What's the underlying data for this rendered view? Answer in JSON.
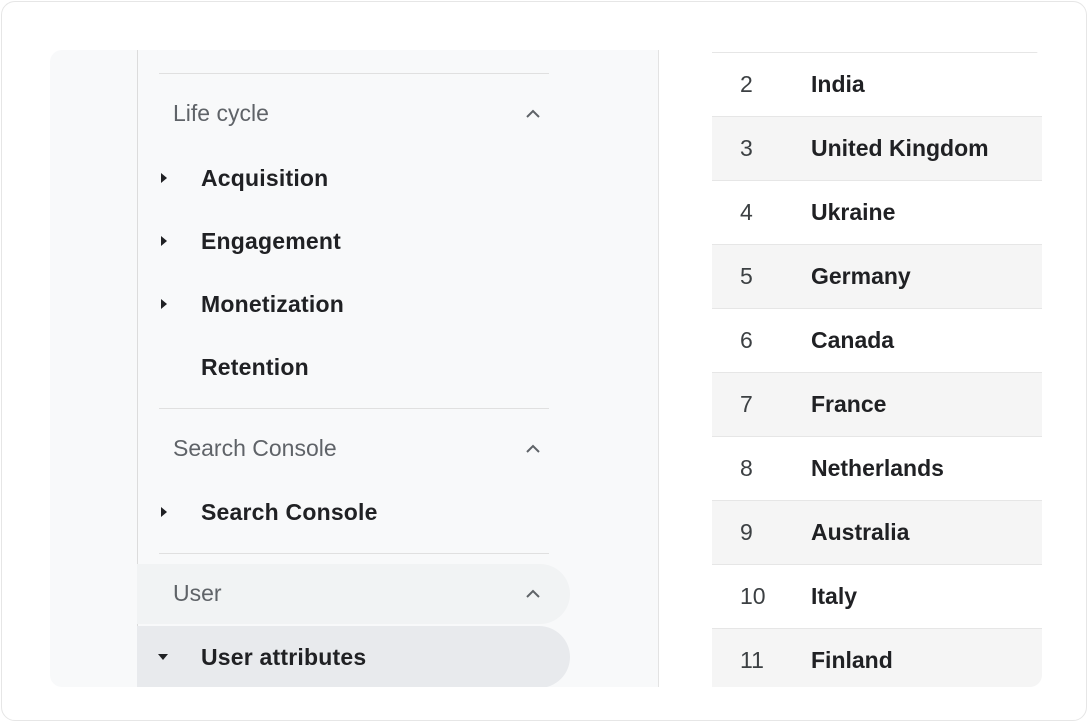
{
  "sidebar": {
    "sections": [
      {
        "title": "Life cycle",
        "items": [
          {
            "label": "Acquisition",
            "icon": "triangle-right-icon"
          },
          {
            "label": "Engagement",
            "icon": "triangle-right-icon"
          },
          {
            "label": "Monetization",
            "icon": "triangle-right-icon"
          },
          {
            "label": "Retention"
          }
        ]
      },
      {
        "title": "Search Console",
        "items": [
          {
            "label": "Search Console",
            "icon": "triangle-right-icon"
          }
        ]
      },
      {
        "title": "User",
        "items": [
          {
            "label": "User attributes",
            "icon": "triangle-down-icon",
            "selected": true
          }
        ]
      }
    ]
  },
  "table": {
    "rows": [
      {
        "rank": "2",
        "country": "India"
      },
      {
        "rank": "3",
        "country": "United Kingdom"
      },
      {
        "rank": "4",
        "country": "Ukraine"
      },
      {
        "rank": "5",
        "country": "Germany"
      },
      {
        "rank": "6",
        "country": "Canada"
      },
      {
        "rank": "7",
        "country": "France"
      },
      {
        "rank": "8",
        "country": "Netherlands"
      },
      {
        "rank": "9",
        "country": "Australia"
      },
      {
        "rank": "10",
        "country": "Italy"
      },
      {
        "rank": "11",
        "country": "Finland"
      }
    ]
  }
}
